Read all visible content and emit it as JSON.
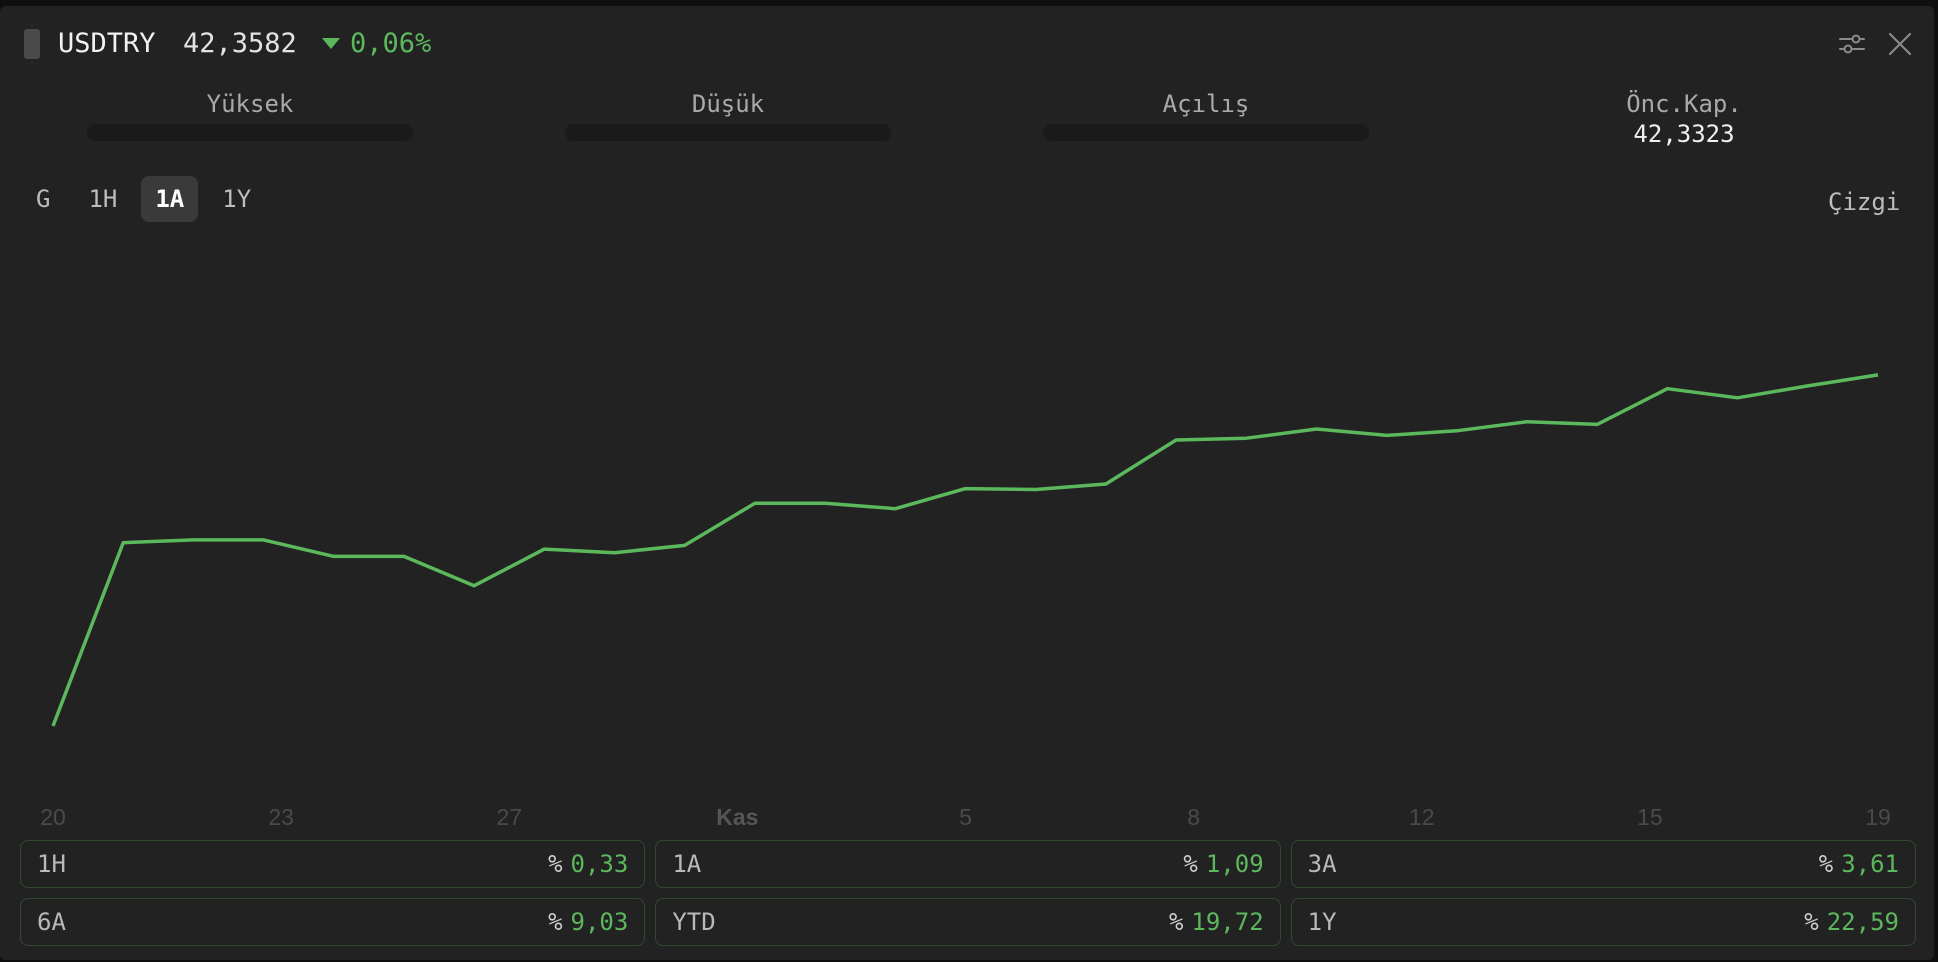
{
  "header": {
    "symbol": "USDTRY",
    "price": "42,3582",
    "change": "0,06%",
    "change_direction": "down",
    "accent_color": "#5cb85c",
    "icons": [
      "drag-handle-icon",
      "sliders-icon",
      "close-icon"
    ]
  },
  "stats": [
    {
      "label": "Yüksek",
      "value": null
    },
    {
      "label": "Düşük",
      "value": null
    },
    {
      "label": "Açılış",
      "value": null
    },
    {
      "label": "Önc.Kap.",
      "value": "42,3323"
    }
  ],
  "periods": {
    "items": [
      "G",
      "1H",
      "1A",
      "1Y"
    ],
    "active": "1A"
  },
  "chart_type_label": "Çizgi",
  "chart_data": {
    "type": "line",
    "color": "#5cb85c",
    "grid": false,
    "x_labels": [
      "20",
      "23",
      "27",
      "Kas",
      "5",
      "8",
      "12",
      "15",
      "19"
    ],
    "x_label_emphasis": "Kas",
    "y_range": [
      41.8,
      42.4
    ],
    "values": [
      41.86,
      42.06,
      42.063,
      42.063,
      42.045,
      42.045,
      42.013,
      42.053,
      42.049,
      42.057,
      42.103,
      42.103,
      42.097,
      42.119,
      42.118,
      42.124,
      42.172,
      42.174,
      42.184,
      42.177,
      42.182,
      42.192,
      42.189,
      42.228,
      42.218,
      42.231,
      42.243
    ]
  },
  "performance": [
    {
      "label": "1H",
      "pct": "%",
      "value": "0,33"
    },
    {
      "label": "1A",
      "pct": "%",
      "value": "1,09"
    },
    {
      "label": "3A",
      "pct": "%",
      "value": "3,61"
    },
    {
      "label": "6A",
      "pct": "%",
      "value": "9,03"
    },
    {
      "label": "YTD",
      "pct": "%",
      "value": "19,72"
    },
    {
      "label": "1Y",
      "pct": "%",
      "value": "22,59"
    }
  ]
}
